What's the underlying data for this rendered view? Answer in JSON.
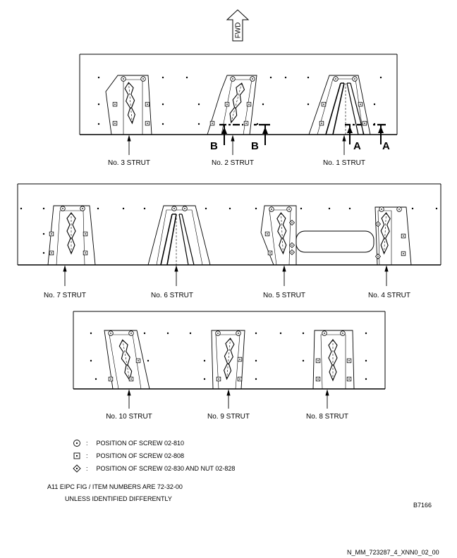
{
  "arrow_label": "FWD",
  "cut_labels": {
    "b": "B",
    "a": "A"
  },
  "struts": {
    "s1": "No. 1 STRUT",
    "s2": "No. 2 STRUT",
    "s3": "No. 3 STRUT",
    "s4": "No. 4 STRUT",
    "s5": "No. 5 STRUT",
    "s6": "No. 6 STRUT",
    "s7": "No. 7 STRUT",
    "s8": "No. 8 STRUT",
    "s9": "No. 9 STRUT",
    "s10": "No. 10 STRUT"
  },
  "legend": [
    {
      "icon": "circle-dot",
      "text": "POSITION OF SCREW 02-810"
    },
    {
      "icon": "square-dot",
      "text": "POSITION OF SCREW 02-808"
    },
    {
      "icon": "diamond-dot",
      "text": "POSITION OF SCREW 02-830 AND NUT 02-828"
    }
  ],
  "notes": {
    "line1": "A11 EIPC FIG / ITEM NUMBERS ARE 72-32-00",
    "line2": "UNLESS IDENTIFIED DIFFERENTLY"
  },
  "figure_code": "B7166",
  "drawing_id": "N_MM_723287_4_XNN0_02_00"
}
